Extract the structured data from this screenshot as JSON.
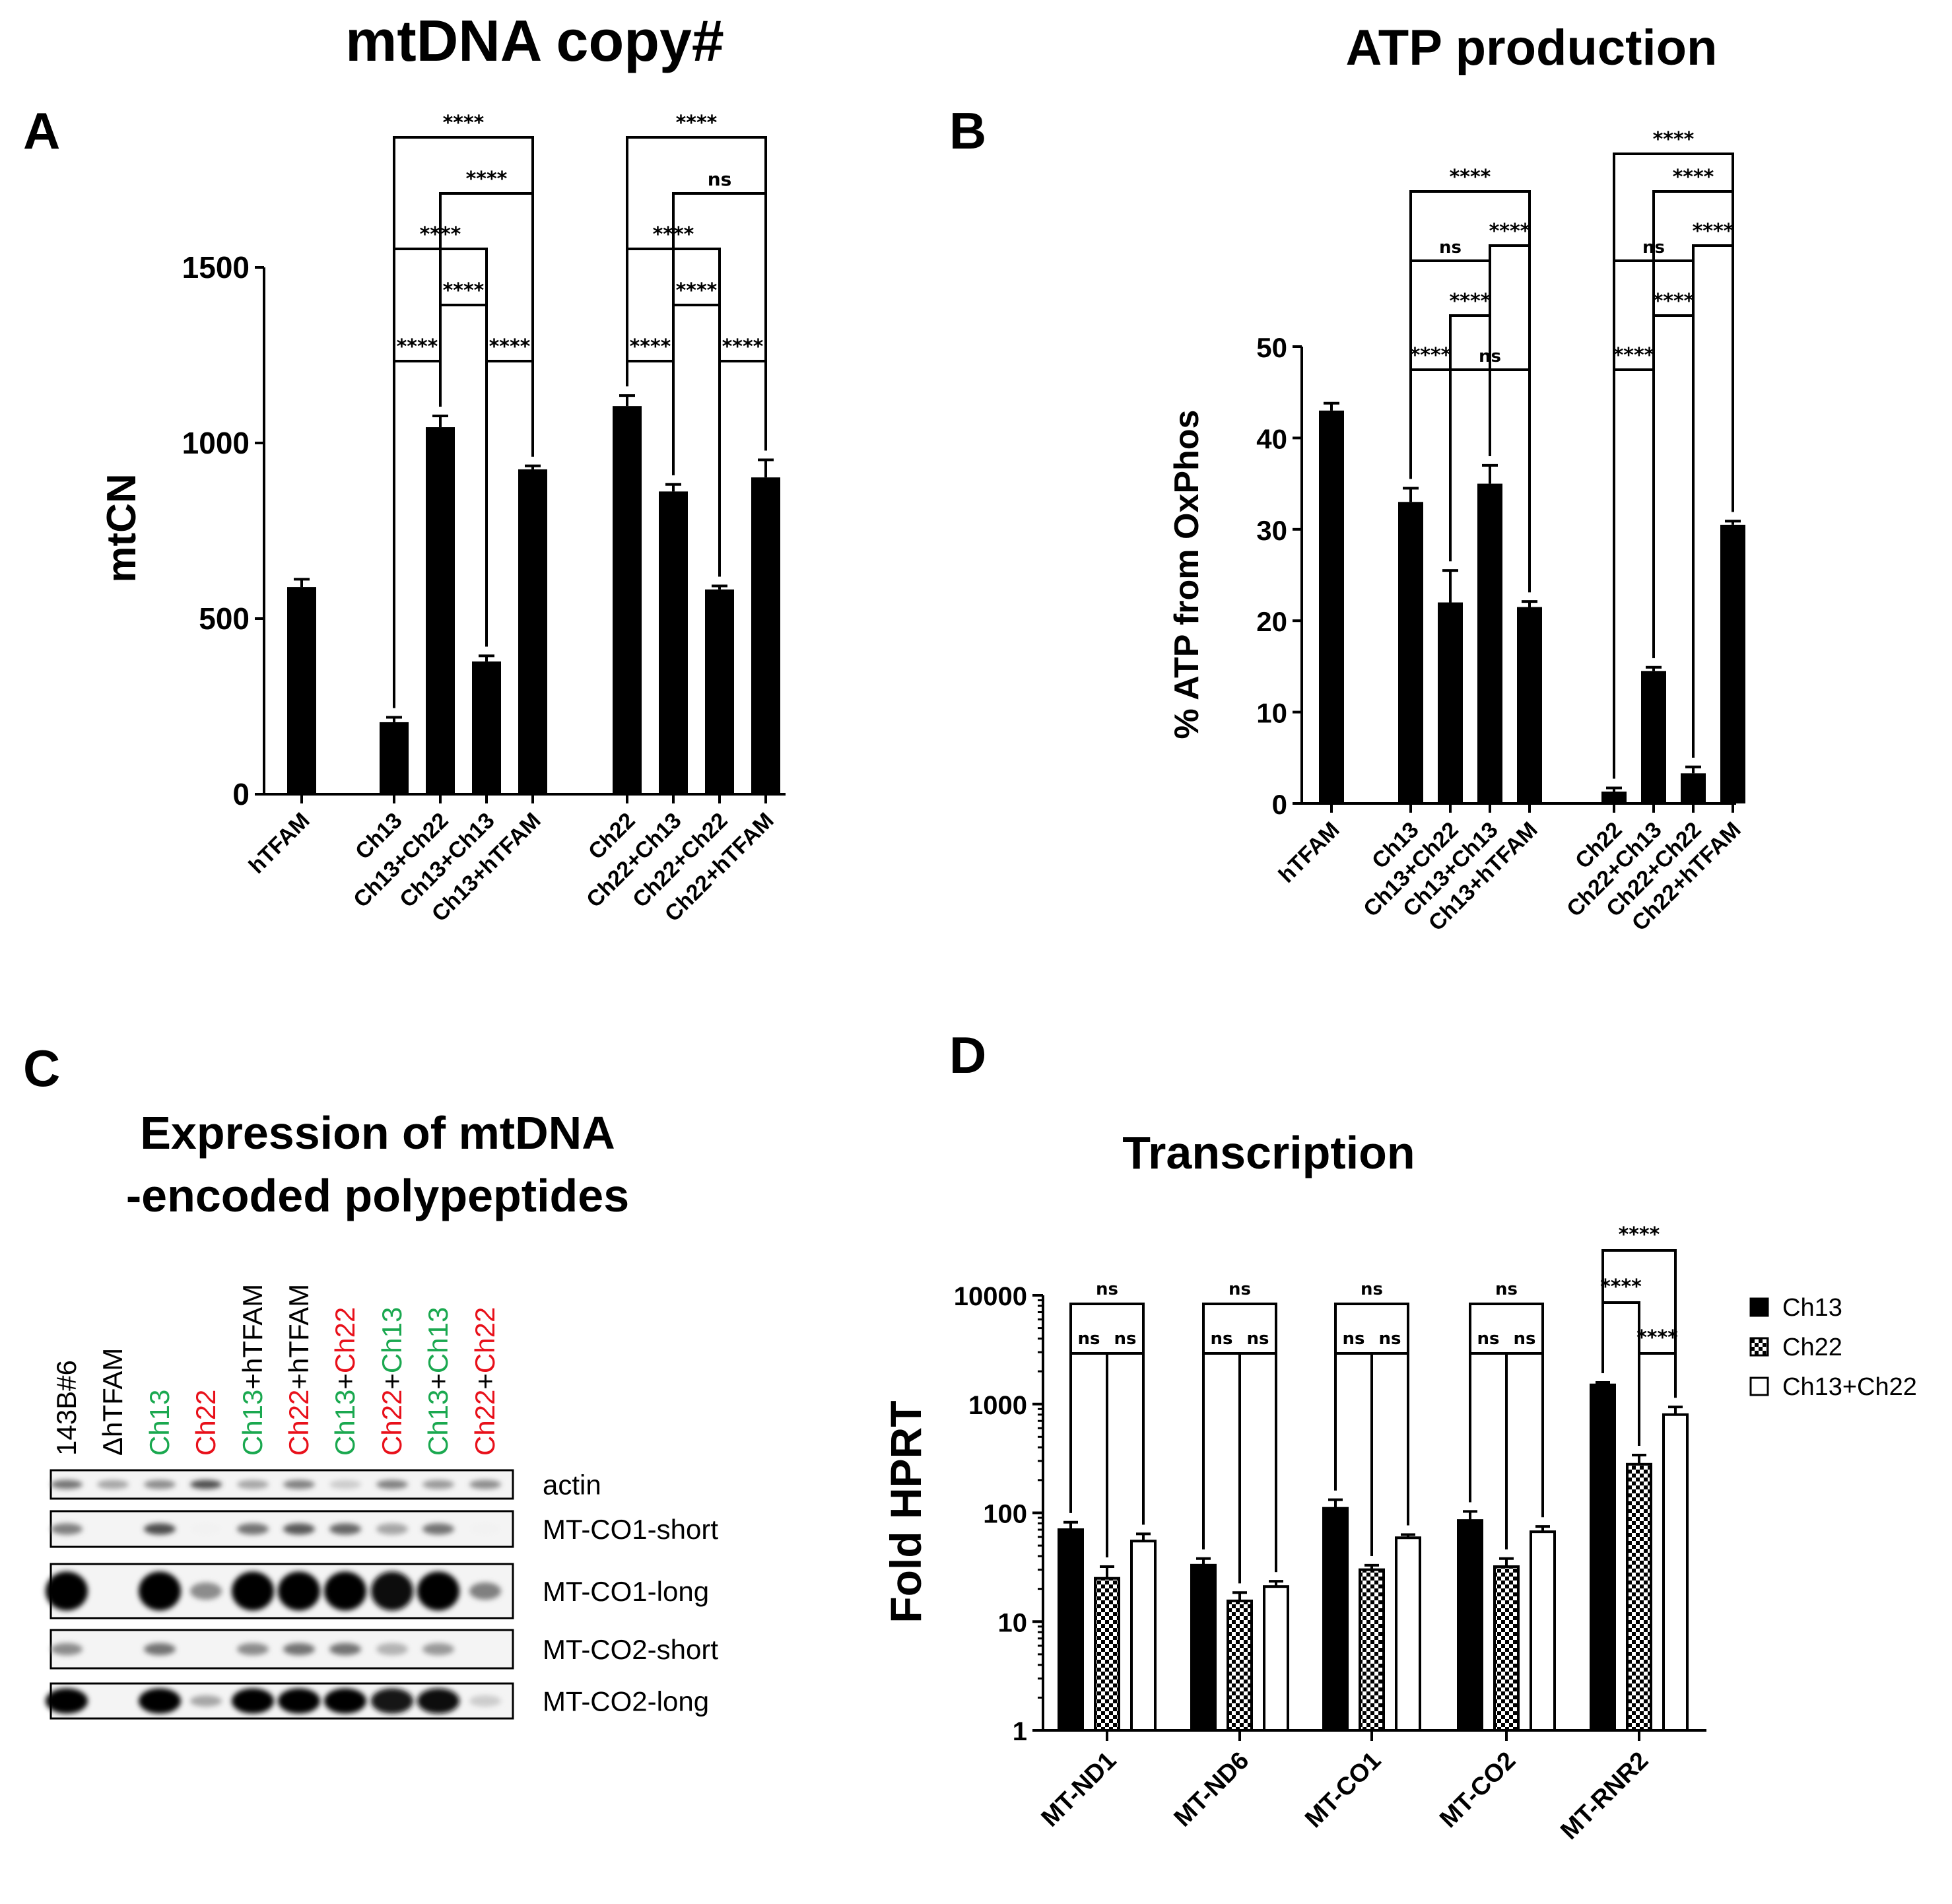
{
  "panels": {
    "A": {
      "letter": "A",
      "title": "mtDNA copy#"
    },
    "B": {
      "letter": "B",
      "title": "ATP production"
    },
    "C": {
      "letter": "C",
      "title_line1": "Expression of mtDNA",
      "title_line2": "-encoded polypeptides"
    },
    "D": {
      "letter": "D",
      "title": "Transcription"
    }
  },
  "colors": {
    "bar": "#000000",
    "green": "#1aa84f",
    "red": "#e8101a",
    "blot_bg": "#f4f4f4"
  },
  "chart_data": [
    {
      "id": "A",
      "type": "bar",
      "title": "mtDNA copy#",
      "ylabel": "mtCN",
      "ylim": [
        0,
        1500
      ],
      "yticks": [
        0,
        500,
        1000,
        1500
      ],
      "categories": [
        "hTFAM",
        "Ch13",
        "Ch13+Ch22",
        "Ch13+Ch13",
        "Ch13+hTFAM",
        "Ch22",
        "Ch22+Ch13",
        "Ch22+Ch22",
        "Ch22+hTFAM"
      ],
      "values": [
        590,
        205,
        1045,
        378,
        925,
        1105,
        862,
        583,
        902
      ],
      "errors": [
        22,
        14,
        32,
        16,
        10,
        30,
        20,
        10,
        50
      ],
      "comparisons": [
        {
          "a": 1,
          "b": 2,
          "label": "****"
        },
        {
          "a": 3,
          "b": 4,
          "label": "****"
        },
        {
          "a": 2,
          "b": 3,
          "label": "****"
        },
        {
          "a": 1,
          "b": 3,
          "label": "****"
        },
        {
          "a": 2,
          "b": 4,
          "label": "****"
        },
        {
          "a": 1,
          "b": 4,
          "label": "****"
        },
        {
          "a": 5,
          "b": 6,
          "label": "****"
        },
        {
          "a": 7,
          "b": 8,
          "label": "****"
        },
        {
          "a": 6,
          "b": 7,
          "label": "****"
        },
        {
          "a": 5,
          "b": 7,
          "label": "****"
        },
        {
          "a": 6,
          "b": 8,
          "label": "ns"
        },
        {
          "a": 5,
          "b": 8,
          "label": "****"
        }
      ]
    },
    {
      "id": "B",
      "type": "bar",
      "title": "ATP production",
      "ylabel": "% ATP from OxPhos",
      "ylim": [
        0,
        50
      ],
      "yticks": [
        0,
        10,
        20,
        30,
        40,
        50
      ],
      "categories": [
        "hTFAM",
        "Ch13",
        "Ch13+Ch22",
        "Ch13+Ch13",
        "Ch13+hTFAM",
        "Ch22",
        "Ch22+Ch13",
        "Ch22+Ch22",
        "Ch22+hTFAM"
      ],
      "values": [
        43,
        33,
        22,
        35,
        21.5,
        1.3,
        14.5,
        3.3,
        30.5
      ],
      "errors": [
        0.8,
        1.5,
        3.5,
        2.0,
        0.6,
        0.4,
        0.4,
        0.7,
        0.4
      ],
      "comparisons": [
        {
          "a": 1,
          "b": 2,
          "label": "****"
        },
        {
          "a": 2,
          "b": 4,
          "label": "ns"
        },
        {
          "a": 2,
          "b": 3,
          "label": "****"
        },
        {
          "a": 1,
          "b": 3,
          "label": "ns"
        },
        {
          "a": 3,
          "b": 4,
          "label": "****"
        },
        {
          "a": 1,
          "b": 4,
          "label": "****"
        },
        {
          "a": 5,
          "b": 6,
          "label": "****"
        },
        {
          "a": 6,
          "b": 7,
          "label": "****"
        },
        {
          "a": 5,
          "b": 7,
          "label": "ns"
        },
        {
          "a": 7,
          "b": 8,
          "label": "****"
        },
        {
          "a": 6,
          "b": 8,
          "label": "****"
        },
        {
          "a": 5,
          "b": 8,
          "label": "****"
        }
      ]
    },
    {
      "id": "D",
      "type": "bar",
      "title": "Transcription",
      "ylabel": "Fold HPRT",
      "yscale": "log",
      "ylim": [
        1,
        10000
      ],
      "yticks": [
        1,
        10,
        100,
        1000,
        10000
      ],
      "categories": [
        "MT-ND1",
        "MT-ND6",
        "MT-CO1",
        "MT-CO2",
        "MT-RNR2"
      ],
      "series": [
        {
          "name": "Ch13",
          "fill": "solid",
          "values": [
            70,
            33,
            110,
            85,
            1500
          ],
          "errors": [
            12,
            5,
            22,
            18,
            80
          ]
        },
        {
          "name": "Ch22",
          "fill": "hatch",
          "values": [
            25,
            15.5,
            30,
            32,
            280
          ],
          "errors": [
            7,
            3,
            3,
            6,
            60
          ]
        },
        {
          "name": "Ch13+Ch22",
          "fill": "open",
          "values": [
            55,
            21,
            59,
            67,
            800
          ],
          "errors": [
            9,
            2.5,
            4,
            8,
            140
          ]
        }
      ],
      "comparisons": [
        {
          "group": 0,
          "a": 0,
          "b": 1,
          "label": "ns"
        },
        {
          "group": 0,
          "a": 1,
          "b": 2,
          "label": "ns"
        },
        {
          "group": 0,
          "a": 0,
          "b": 2,
          "label": "ns"
        },
        {
          "group": 1,
          "a": 0,
          "b": 1,
          "label": "ns"
        },
        {
          "group": 1,
          "a": 1,
          "b": 2,
          "label": "ns"
        },
        {
          "group": 1,
          "a": 0,
          "b": 2,
          "label": "ns"
        },
        {
          "group": 2,
          "a": 0,
          "b": 1,
          "label": "ns"
        },
        {
          "group": 2,
          "a": 1,
          "b": 2,
          "label": "ns"
        },
        {
          "group": 2,
          "a": 0,
          "b": 2,
          "label": "ns"
        },
        {
          "group": 3,
          "a": 0,
          "b": 1,
          "label": "ns"
        },
        {
          "group": 3,
          "a": 1,
          "b": 2,
          "label": "ns"
        },
        {
          "group": 3,
          "a": 0,
          "b": 2,
          "label": "ns"
        },
        {
          "group": 4,
          "a": 0,
          "b": 1,
          "label": "****"
        },
        {
          "group": 4,
          "a": 1,
          "b": 2,
          "label": "****"
        },
        {
          "group": 4,
          "a": 0,
          "b": 2,
          "label": "****"
        }
      ]
    }
  ],
  "blot": {
    "lanes": [
      {
        "parts": [
          {
            "text": "143B#6",
            "color": "black"
          }
        ]
      },
      {
        "parts": [
          {
            "text": "ΔhTFAM",
            "color": "black"
          }
        ]
      },
      {
        "parts": [
          {
            "text": "Ch13",
            "color": "green"
          }
        ]
      },
      {
        "parts": [
          {
            "text": "Ch22",
            "color": "red"
          }
        ]
      },
      {
        "parts": [
          {
            "text": "Ch13",
            "color": "green"
          },
          {
            "text": "+hTFAM",
            "color": "black"
          }
        ]
      },
      {
        "parts": [
          {
            "text": "Ch22",
            "color": "red"
          },
          {
            "text": "+hTFAM",
            "color": "black"
          }
        ]
      },
      {
        "parts": [
          {
            "text": "Ch13",
            "color": "green"
          },
          {
            "text": "+",
            "color": "black"
          },
          {
            "text": "Ch22",
            "color": "red"
          }
        ]
      },
      {
        "parts": [
          {
            "text": "Ch22",
            "color": "red"
          },
          {
            "text": "+",
            "color": "black"
          },
          {
            "text": "Ch13",
            "color": "green"
          }
        ]
      },
      {
        "parts": [
          {
            "text": "Ch13",
            "color": "green"
          },
          {
            "text": "+",
            "color": "black"
          },
          {
            "text": "Ch13",
            "color": "green"
          }
        ]
      },
      {
        "parts": [
          {
            "text": "Ch22",
            "color": "red"
          },
          {
            "text": "+",
            "color": "black"
          },
          {
            "text": "Ch22",
            "color": "red"
          }
        ]
      }
    ],
    "rows": [
      {
        "label": "actin",
        "intensity": [
          0.55,
          0.35,
          0.45,
          0.7,
          0.35,
          0.5,
          0.2,
          0.5,
          0.4,
          0.45
        ]
      },
      {
        "label": "MT-CO1-short",
        "intensity": [
          0.5,
          0,
          0.7,
          0.05,
          0.55,
          0.65,
          0.6,
          0.35,
          0.55,
          0.05
        ]
      },
      {
        "label": "MT-CO1-long",
        "intensity": [
          1,
          0,
          1,
          0.45,
          1,
          1,
          1,
          0.95,
          1,
          0.5
        ]
      },
      {
        "label": "MT-CO2-short",
        "intensity": [
          0.45,
          0,
          0.55,
          0,
          0.45,
          0.55,
          0.55,
          0.3,
          0.4,
          0
        ]
      },
      {
        "label": "MT-CO2-long",
        "intensity": [
          1,
          0,
          1,
          0.35,
          1,
          1,
          1,
          0.9,
          0.95,
          0.2
        ]
      }
    ]
  }
}
